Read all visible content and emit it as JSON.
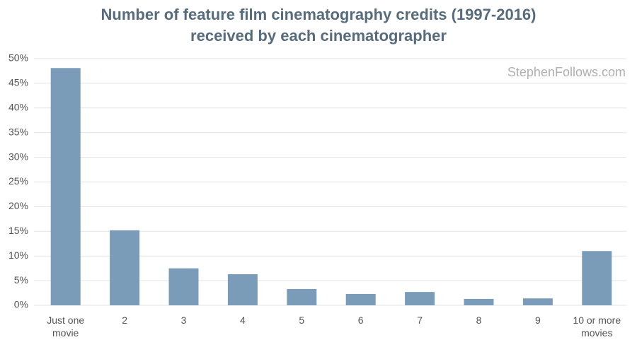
{
  "chart_data": {
    "type": "bar",
    "title": "Number of feature film cinematography credits (1997-2016) received by each cinematographer",
    "watermark": "StephenFollows.com",
    "categories": [
      "Just one movie",
      "2",
      "3",
      "4",
      "5",
      "6",
      "7",
      "8",
      "9",
      "10 or more movies"
    ],
    "values": [
      48.1,
      15.2,
      7.5,
      6.3,
      3.3,
      2.3,
      2.7,
      1.3,
      1.4,
      11.0
    ],
    "color": "#7b9cb8",
    "ylim": [
      0,
      50
    ],
    "yticks": [
      {
        "value": 0,
        "label": "0%"
      },
      {
        "value": 5,
        "label": "5%"
      },
      {
        "value": 10,
        "label": "10%"
      },
      {
        "value": 15,
        "label": "15%"
      },
      {
        "value": 20,
        "label": "20%"
      },
      {
        "value": 25,
        "label": "25%"
      },
      {
        "value": 30,
        "label": "30%"
      },
      {
        "value": 35,
        "label": "35%"
      },
      {
        "value": 40,
        "label": "40%"
      },
      {
        "value": 45,
        "label": "45%"
      },
      {
        "value": 50,
        "label": "50%"
      }
    ],
    "grid": true
  }
}
